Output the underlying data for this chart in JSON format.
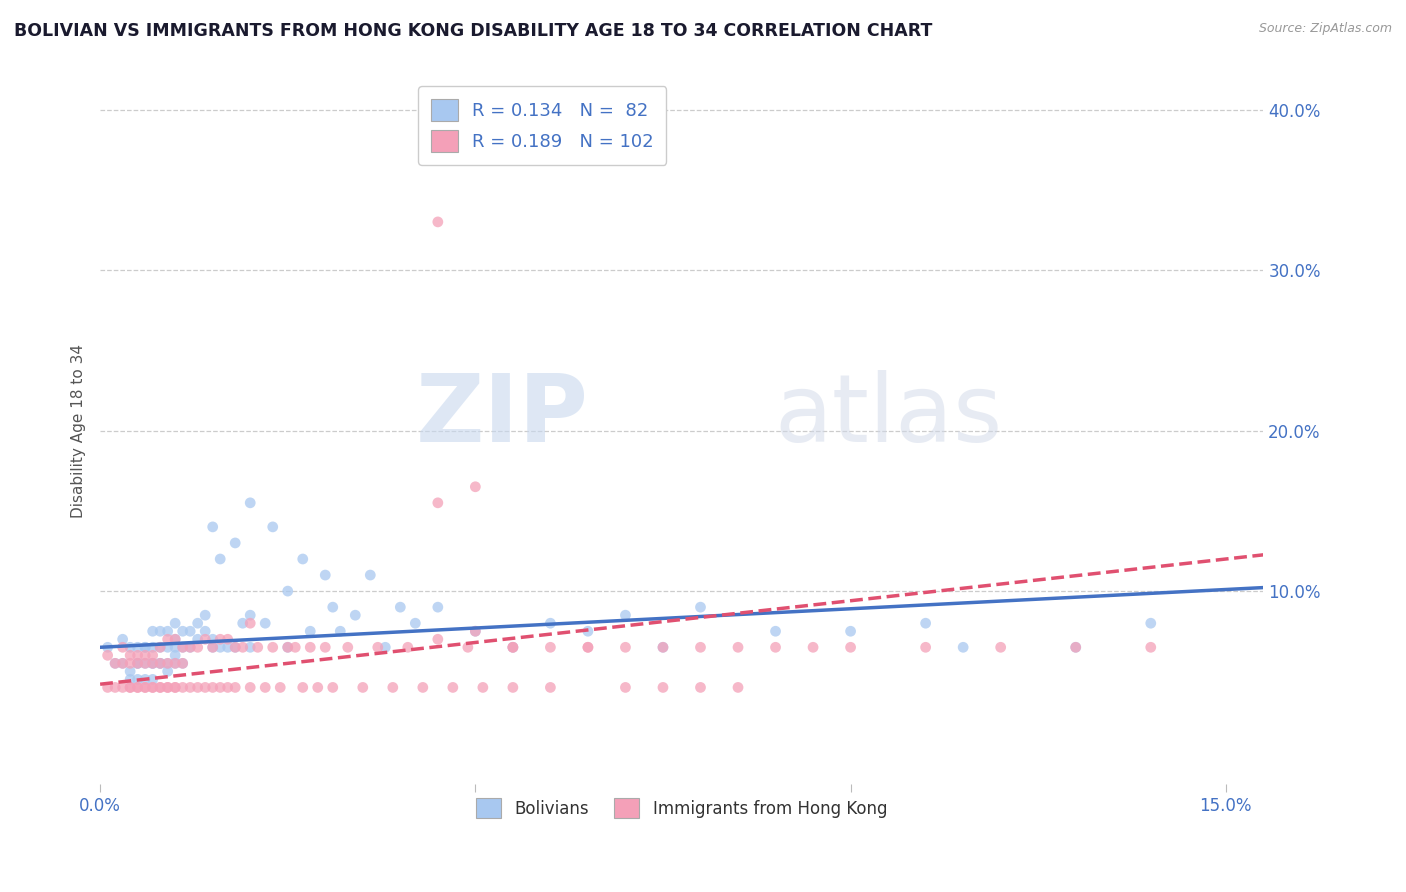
{
  "title": "BOLIVIAN VS IMMIGRANTS FROM HONG KONG DISABILITY AGE 18 TO 34 CORRELATION CHART",
  "source": "Source: ZipAtlas.com",
  "ylabel": "Disability Age 18 to 34",
  "x_min": 0.0,
  "x_max": 0.155,
  "y_min": -0.02,
  "y_max": 0.42,
  "y_ticks_right": [
    0.1,
    0.2,
    0.3,
    0.4
  ],
  "y_tick_labels_right": [
    "10.0%",
    "20.0%",
    "30.0%",
    "40.0%"
  ],
  "blue_color": "#A8C8F0",
  "pink_color": "#F4A0B8",
  "blue_line_color": "#4472C4",
  "pink_line_color": "#E05070",
  "legend_blue_label": "Bolivians",
  "legend_pink_label": "Immigrants from Hong Kong",
  "r_blue": 0.134,
  "n_blue": 82,
  "r_pink": 0.189,
  "n_pink": 102,
  "title_color": "#1A1A2E",
  "axis_label_color": "#555555",
  "tick_label_color": "#4472C4",
  "watermark_zip": "ZIP",
  "watermark_atlas": "atlas",
  "blue_scatter_x": [
    0.001,
    0.002,
    0.003,
    0.003,
    0.004,
    0.004,
    0.004,
    0.005,
    0.005,
    0.005,
    0.005,
    0.006,
    0.006,
    0.006,
    0.006,
    0.007,
    0.007,
    0.007,
    0.007,
    0.007,
    0.008,
    0.008,
    0.008,
    0.008,
    0.009,
    0.009,
    0.009,
    0.009,
    0.01,
    0.01,
    0.01,
    0.01,
    0.01,
    0.011,
    0.011,
    0.011,
    0.012,
    0.012,
    0.013,
    0.013,
    0.014,
    0.014,
    0.015,
    0.015,
    0.015,
    0.016,
    0.016,
    0.017,
    0.018,
    0.018,
    0.019,
    0.02,
    0.02,
    0.02,
    0.022,
    0.023,
    0.025,
    0.025,
    0.027,
    0.028,
    0.03,
    0.031,
    0.032,
    0.034,
    0.036,
    0.038,
    0.04,
    0.042,
    0.045,
    0.05,
    0.055,
    0.06,
    0.065,
    0.07,
    0.075,
    0.08,
    0.09,
    0.1,
    0.11,
    0.115,
    0.13,
    0.14
  ],
  "blue_scatter_y": [
    0.065,
    0.055,
    0.07,
    0.055,
    0.065,
    0.05,
    0.045,
    0.055,
    0.065,
    0.055,
    0.045,
    0.065,
    0.055,
    0.065,
    0.045,
    0.075,
    0.055,
    0.065,
    0.055,
    0.045,
    0.075,
    0.055,
    0.065,
    0.055,
    0.075,
    0.065,
    0.055,
    0.05,
    0.08,
    0.07,
    0.065,
    0.06,
    0.055,
    0.075,
    0.065,
    0.055,
    0.075,
    0.065,
    0.08,
    0.07,
    0.085,
    0.075,
    0.14,
    0.07,
    0.065,
    0.12,
    0.065,
    0.065,
    0.13,
    0.065,
    0.08,
    0.155,
    0.085,
    0.065,
    0.08,
    0.14,
    0.1,
    0.065,
    0.12,
    0.075,
    0.11,
    0.09,
    0.075,
    0.085,
    0.11,
    0.065,
    0.09,
    0.08,
    0.09,
    0.075,
    0.065,
    0.08,
    0.075,
    0.085,
    0.065,
    0.09,
    0.075,
    0.075,
    0.08,
    0.065,
    0.065,
    0.08
  ],
  "pink_scatter_x": [
    0.001,
    0.001,
    0.002,
    0.002,
    0.003,
    0.003,
    0.003,
    0.004,
    0.004,
    0.004,
    0.004,
    0.005,
    0.005,
    0.005,
    0.005,
    0.006,
    0.006,
    0.006,
    0.006,
    0.007,
    0.007,
    0.007,
    0.007,
    0.008,
    0.008,
    0.008,
    0.008,
    0.009,
    0.009,
    0.009,
    0.009,
    0.01,
    0.01,
    0.01,
    0.01,
    0.011,
    0.011,
    0.011,
    0.012,
    0.012,
    0.013,
    0.013,
    0.014,
    0.014,
    0.015,
    0.015,
    0.016,
    0.016,
    0.017,
    0.017,
    0.018,
    0.018,
    0.019,
    0.02,
    0.02,
    0.021,
    0.022,
    0.023,
    0.024,
    0.025,
    0.026,
    0.027,
    0.028,
    0.029,
    0.03,
    0.031,
    0.033,
    0.035,
    0.037,
    0.039,
    0.041,
    0.043,
    0.045,
    0.047,
    0.049,
    0.051,
    0.055,
    0.06,
    0.065,
    0.07,
    0.075,
    0.08,
    0.085,
    0.09,
    0.095,
    0.1,
    0.11,
    0.12,
    0.13,
    0.14,
    0.045,
    0.045,
    0.05,
    0.05,
    0.055,
    0.055,
    0.06,
    0.065,
    0.07,
    0.075,
    0.08,
    0.085
  ],
  "pink_scatter_y": [
    0.06,
    0.04,
    0.055,
    0.04,
    0.065,
    0.04,
    0.055,
    0.06,
    0.04,
    0.055,
    0.04,
    0.06,
    0.04,
    0.055,
    0.04,
    0.06,
    0.04,
    0.055,
    0.04,
    0.06,
    0.04,
    0.055,
    0.04,
    0.065,
    0.04,
    0.055,
    0.04,
    0.07,
    0.04,
    0.055,
    0.04,
    0.07,
    0.04,
    0.055,
    0.04,
    0.065,
    0.04,
    0.055,
    0.065,
    0.04,
    0.065,
    0.04,
    0.07,
    0.04,
    0.065,
    0.04,
    0.07,
    0.04,
    0.07,
    0.04,
    0.065,
    0.04,
    0.065,
    0.08,
    0.04,
    0.065,
    0.04,
    0.065,
    0.04,
    0.065,
    0.065,
    0.04,
    0.065,
    0.04,
    0.065,
    0.04,
    0.065,
    0.04,
    0.065,
    0.04,
    0.065,
    0.04,
    0.07,
    0.04,
    0.065,
    0.04,
    0.065,
    0.065,
    0.065,
    0.065,
    0.065,
    0.065,
    0.065,
    0.065,
    0.065,
    0.065,
    0.065,
    0.065,
    0.065,
    0.065,
    0.33,
    0.155,
    0.165,
    0.075,
    0.04,
    0.065,
    0.04,
    0.065,
    0.04,
    0.04,
    0.04,
    0.04
  ]
}
